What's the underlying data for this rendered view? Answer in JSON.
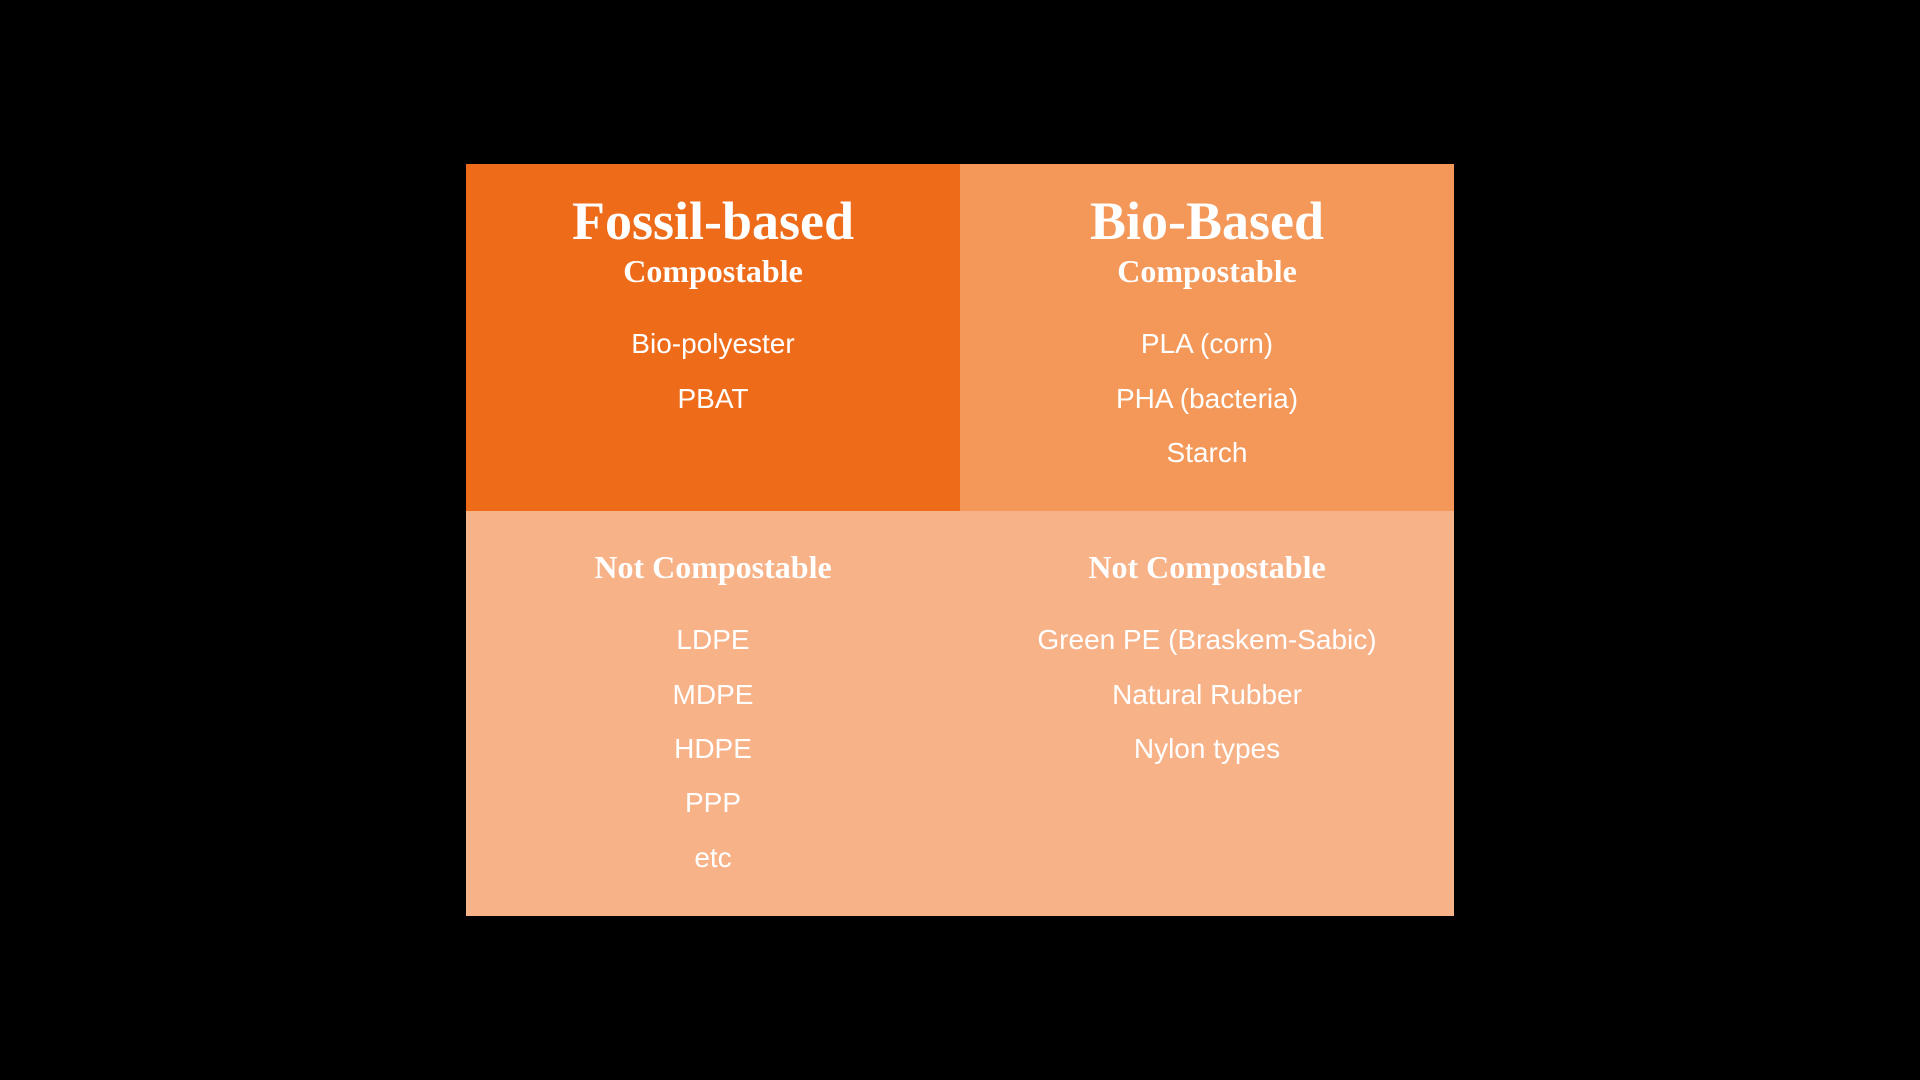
{
  "matrix": {
    "background_color": "#000000",
    "text_color": "#ffffff",
    "title_fontsize": 54,
    "subtitle_fontsize": 32,
    "item_fontsize": 28,
    "quadrants": [
      {
        "position": "top-left",
        "bg_color": "#ee6b1a",
        "title": "Fossil-based",
        "subtitle": "Compostable",
        "items": [
          "Bio-polyester",
          "PBAT"
        ]
      },
      {
        "position": "top-right",
        "bg_color": "#f49859",
        "title": "Bio-Based",
        "subtitle": "Compostable",
        "items": [
          "PLA (corn)",
          "PHA (bacteria)",
          "Starch"
        ]
      },
      {
        "position": "bottom-left",
        "bg_color": "#f7b288",
        "subtitle": "Not Compostable",
        "items": [
          "LDPE",
          "MDPE",
          "HDPE",
          "PPP",
          "etc"
        ]
      },
      {
        "position": "bottom-right",
        "bg_color": "#f7b288",
        "subtitle": "Not Compostable",
        "items": [
          "Green PE (Braskem-Sabic)",
          "Natural Rubber",
          "Nylon types"
        ]
      }
    ]
  }
}
